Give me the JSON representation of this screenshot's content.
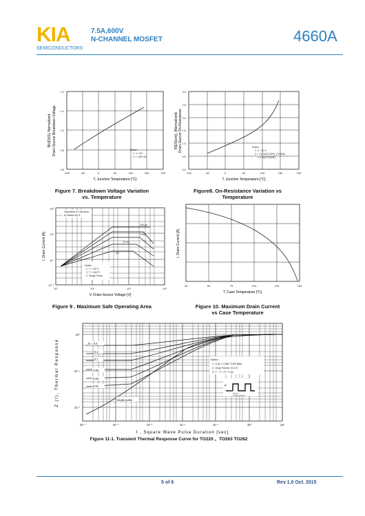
{
  "header": {
    "logo": "KIA",
    "logo_sub": "SEMICONDUCTORS",
    "title_line1": "7.5A,600V",
    "title_line2": "N-CHANNEL MOSFET",
    "part_number": "4660A"
  },
  "figures": {
    "fig7": {
      "caption_line1": "Figure 7. Breakdown Voltage Variation",
      "caption_line2": "vs. Temperature",
      "ylabel1": "BV(DSS), Normalized",
      "ylabel2": "Drain-Source Breakdown Voltage",
      "xlabel": "T, Junction Temperature [°C]",
      "notes": [
        "Notes :",
        "1. V =0V",
        "2. I =250 uA"
      ],
      "x_ticks": [
        "-100",
        "-50",
        "0",
        "50",
        "100",
        "150",
        "200"
      ],
      "y_ticks": [
        "1.2",
        "1.1",
        "1.0",
        "0.9",
        "0.8"
      ]
    },
    "fig8": {
      "caption_line1": "Figure8. On-Resistance Variation vs",
      "caption_line2": "Temperature",
      "ylabel1": "R(DS(on)), (Normalized)",
      "ylabel2": "Drain-Source On-Resistance",
      "xlabel": "T, Junction Temperature [°C]",
      "notes": [
        "Notes :",
        "1. V =10 V",
        "2. I =3.7A(TO220), (TO263)",
        "= 2.2A(TO220F)"
      ],
      "x_ticks": [
        "-100",
        "-50",
        "0",
        "50",
        "100",
        "150",
        "200"
      ],
      "y_ticks": [
        "3.0",
        "2.5",
        "2.0",
        "1.5",
        "1.0",
        "0.5",
        "0.0"
      ]
    },
    "fig9": {
      "caption": "Figure 9 . Maximum Safe Operating Area",
      "ylabel": "I, Drain Current [A]",
      "xlabel": "V, Drain-Source Voltage [V]",
      "annotation": [
        "Operation in This Area",
        "is Limited by R"
      ],
      "line_labels": [
        "100 µs",
        "1 ms",
        "10 ms",
        "DC"
      ],
      "notes": [
        "Notes :",
        "1. T = 25°C",
        "2. T = 150°C",
        "3. Single Pulse"
      ],
      "x_ticks": [
        "10°",
        "10¹",
        "10²",
        "10³"
      ],
      "y_ticks": [
        "10²",
        "10¹",
        "10°",
        "10⁻¹"
      ]
    },
    "fig10": {
      "caption_line1": "Figure 10. Maximum Drain Current",
      "caption_line2": "vs Case Temperature",
      "ylabel": "I, Drain Current [A]",
      "xlabel": "T, Case Temperature [°C]",
      "x_ticks": [
        "25",
        "50",
        "75",
        "100",
        "125",
        "150"
      ]
    },
    "fig11": {
      "caption": "Figure 11-1. Transient Thermal Response Curve for TO220 、TO263 TO262",
      "ylabel": "Z   (t), Thermal Response",
      "xlabel": "t , Square Wave Pulse Duration [sec]",
      "duty_labels": [
        "D = 0.5",
        "0.2",
        "0.1",
        "0.05",
        "0.02",
        "0.01"
      ],
      "single_pulse": "single pulse",
      "notes": [
        "Notes :",
        "1. Z   (t) = 0.88 °C/W Max.",
        "2. Duty Factor, D=t /t",
        "3. T   - T  = P    * Z   (t)"
      ],
      "pdm": "P",
      "x_ticks": [
        "10⁻⁵",
        "10⁻⁴",
        "10⁻³",
        "10⁻²",
        "10⁻¹",
        "10⁰",
        "10¹"
      ],
      "y_ticks": [
        "10⁰",
        "10⁻¹",
        "10⁻²"
      ]
    }
  },
  "footer": {
    "page": "5 of 6",
    "revision": "Rev 1.0 Oct. 2015"
  }
}
